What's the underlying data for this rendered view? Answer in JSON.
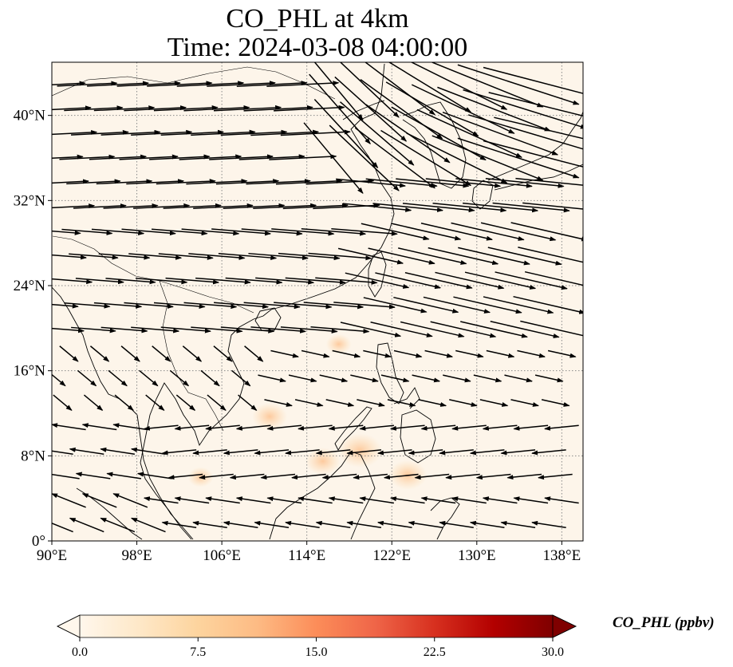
{
  "title": {
    "line1": "CO_PHL at 4km",
    "line2": "Time: 2024-03-08 04:00:00"
  },
  "map": {
    "extent": {
      "lon_min": 90,
      "lon_max": 140,
      "lat_min": 0,
      "lat_max": 45
    },
    "background_color": "#fdf5ea",
    "gridlines": {
      "style": "dotted",
      "color": "#888888"
    },
    "lon_ticks": [
      {
        "value": 90,
        "label": "90°E"
      },
      {
        "value": 98,
        "label": "98°E"
      },
      {
        "value": 106,
        "label": "106°E"
      },
      {
        "value": 114,
        "label": "114°E"
      },
      {
        "value": 122,
        "label": "122°E"
      },
      {
        "value": 130,
        "label": "130°E"
      },
      {
        "value": 138,
        "label": "138°E"
      }
    ],
    "lat_ticks": [
      {
        "value": 0,
        "label": "0°"
      },
      {
        "value": 8,
        "label": "8°N"
      },
      {
        "value": 16,
        "label": "16°N"
      },
      {
        "value": 24,
        "label": "24°N"
      },
      {
        "value": 32,
        "label": "32°N"
      },
      {
        "value": 40,
        "label": "40°N"
      }
    ],
    "concentration_spots": [
      {
        "lon": 119,
        "lat": 8.5,
        "value": 4.5
      },
      {
        "lon": 115.5,
        "lat": 7.5,
        "value": 3
      },
      {
        "lon": 110.5,
        "lat": 11.7,
        "value": 3
      },
      {
        "lon": 123.5,
        "lat": 6.2,
        "value": 3.5
      },
      {
        "lon": 117,
        "lat": 18.5,
        "value": 1.5
      },
      {
        "lon": 104,
        "lat": 6,
        "value": 1.5
      }
    ]
  },
  "colorbar": {
    "title": "CO_PHL (ppbv)",
    "colormap": "OrRd",
    "min": 0.0,
    "max": 30.0,
    "extend": "both",
    "colors": [
      "#fff7ec",
      "#fee8c8",
      "#fdd49e",
      "#fdbb84",
      "#fc8d59",
      "#ef6548",
      "#d7301f",
      "#b30000",
      "#7f0000"
    ],
    "ticks": [
      "0.0",
      "7.5",
      "15.0",
      "22.5",
      "30.0"
    ]
  }
}
